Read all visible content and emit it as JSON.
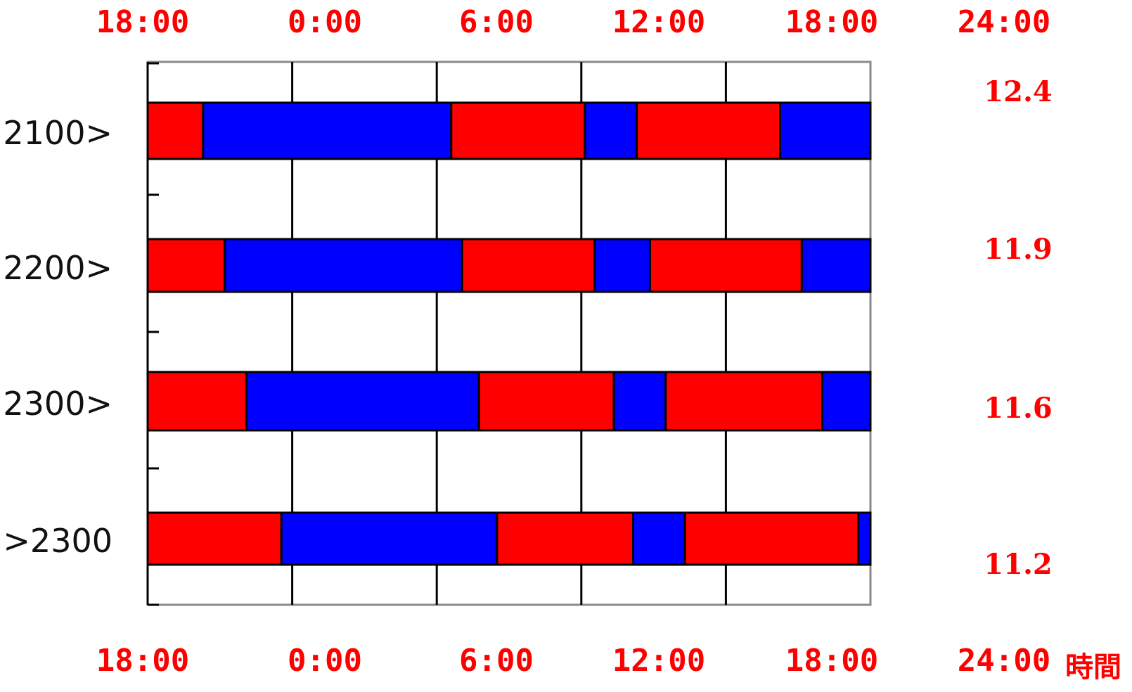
{
  "chart_data": {
    "type": "bar",
    "orientation": "horizontal-stacked",
    "colors": {
      "red": "#ff0000",
      "blue": "#0000ff"
    },
    "x_ticks_top": [
      "18:00",
      "0:00",
      "6:00",
      "12:00",
      "18:00",
      "24:00"
    ],
    "x_ticks_bottom": [
      "18:00",
      "0:00",
      "6:00",
      "12:00",
      "18:00",
      "24:00"
    ],
    "xlabel": "時間",
    "categories": [
      "2100>",
      "2200>",
      "2300>",
      ">2300"
    ],
    "totals": [
      "12.4",
      "11.9",
      "11.6",
      "11.2"
    ],
    "rows": [
      {
        "label": "2100>",
        "total": "12.4",
        "segments": [
          {
            "color": "red",
            "start": 18.0,
            "end": 20.3
          },
          {
            "color": "blue",
            "start": 20.3,
            "end": 30.6
          },
          {
            "color": "red",
            "start": 30.6,
            "end": 36.15
          },
          {
            "color": "blue",
            "start": 36.15,
            "end": 38.3
          },
          {
            "color": "red",
            "start": 38.3,
            "end": 44.25
          },
          {
            "color": "blue",
            "start": 44.25,
            "end": 48.0
          }
        ]
      },
      {
        "label": "2200>",
        "total": "11.9",
        "segments": [
          {
            "color": "red",
            "start": 18.0,
            "end": 21.2
          },
          {
            "color": "blue",
            "start": 21.2,
            "end": 31.05
          },
          {
            "color": "red",
            "start": 31.05,
            "end": 36.55
          },
          {
            "color": "blue",
            "start": 36.55,
            "end": 38.85
          },
          {
            "color": "red",
            "start": 38.85,
            "end": 45.15
          },
          {
            "color": "blue",
            "start": 45.15,
            "end": 48.0
          }
        ]
      },
      {
        "label": "2300>",
        "total": "11.6",
        "segments": [
          {
            "color": "red",
            "start": 18.0,
            "end": 22.1
          },
          {
            "color": "blue",
            "start": 22.1,
            "end": 31.75
          },
          {
            "color": "red",
            "start": 31.75,
            "end": 37.35
          },
          {
            "color": "blue",
            "start": 37.35,
            "end": 39.5
          },
          {
            "color": "red",
            "start": 39.5,
            "end": 46.0
          },
          {
            "color": "blue",
            "start": 46.0,
            "end": 48.0
          }
        ]
      },
      {
        "label": ">2300",
        "total": "11.2",
        "segments": [
          {
            "color": "red",
            "start": 18.0,
            "end": 23.55
          },
          {
            "color": "blue",
            "start": 23.55,
            "end": 32.5
          },
          {
            "color": "red",
            "start": 32.5,
            "end": 38.15
          },
          {
            "color": "blue",
            "start": 38.15,
            "end": 40.3
          },
          {
            "color": "red",
            "start": 40.3,
            "end": 47.5
          },
          {
            "color": "blue",
            "start": 47.5,
            "end": 48.0
          }
        ]
      }
    ]
  }
}
